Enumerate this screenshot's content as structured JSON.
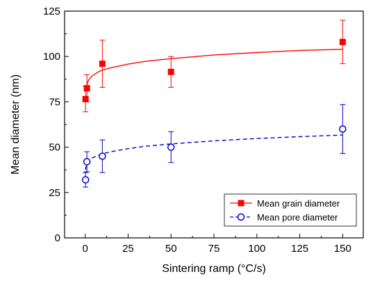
{
  "chart_data": {
    "type": "scatter",
    "xlabel": "Sintering ramp (°C/s)",
    "ylabel": "Mean diameter (nm)",
    "xlim": [
      -12,
      162
    ],
    "ylim": [
      0,
      125
    ],
    "xticks": [
      0,
      25,
      50,
      75,
      100,
      125,
      150
    ],
    "yticks": [
      0,
      25,
      50,
      75,
      100,
      125
    ],
    "legend_position": "bottom-right",
    "grid": false,
    "series": [
      {
        "name": "Mean grain diameter",
        "color": "#ff0000",
        "marker": "filled-square",
        "line": "solid",
        "points": [
          {
            "x": 0.2,
            "y": 76.5,
            "err": 7
          },
          {
            "x": 1,
            "y": 82.5,
            "err": 7.5
          },
          {
            "x": 10,
            "y": 96,
            "err": 13
          },
          {
            "x": 50,
            "y": 91.5,
            "err": 8.5
          },
          {
            "x": 150,
            "y": 108,
            "err": 12
          }
        ],
        "fit": [
          [
            0.2,
            80.5
          ],
          [
            0.5,
            82.5
          ],
          [
            1,
            84.5
          ],
          [
            2,
            87
          ],
          [
            4,
            89.3
          ],
          [
            7,
            91.2
          ],
          [
            10,
            92.5
          ],
          [
            15,
            93.8
          ],
          [
            25,
            95.8
          ],
          [
            35,
            97.3
          ],
          [
            50,
            98.8
          ],
          [
            75,
            100.8
          ],
          [
            100,
            102.2
          ],
          [
            125,
            103.3
          ],
          [
            150,
            104
          ]
        ]
      },
      {
        "name": "Mean pore diameter",
        "color": "#0000cc",
        "marker": "open-circle",
        "line": "dashed",
        "points": [
          {
            "x": 0.2,
            "y": 32,
            "err": 4
          },
          {
            "x": 1,
            "y": 42,
            "err": 5.5
          },
          {
            "x": 10,
            "y": 45,
            "err": 9
          },
          {
            "x": 50,
            "y": 50,
            "err": 8.5
          },
          {
            "x": 150,
            "y": 60,
            "err": 13.5
          }
        ],
        "fit": [
          [
            0.2,
            37.5
          ],
          [
            0.5,
            39.5
          ],
          [
            1,
            41
          ],
          [
            2,
            42.5
          ],
          [
            4,
            44
          ],
          [
            7,
            45.3
          ],
          [
            10,
            46.3
          ],
          [
            15,
            47.5
          ],
          [
            25,
            49.2
          ],
          [
            35,
            50.5
          ],
          [
            50,
            51.8
          ],
          [
            75,
            53.5
          ],
          [
            100,
            54.8
          ],
          [
            125,
            55.8
          ],
          [
            150,
            56.7
          ]
        ]
      }
    ]
  }
}
